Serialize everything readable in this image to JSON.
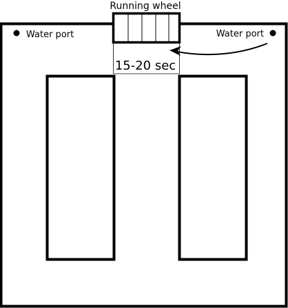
{
  "diagram": {
    "wheel_label": "Running wheel",
    "left_port_label": "Water port",
    "right_port_label": "Water port",
    "interval_label": "15-20 sec"
  },
  "colors": {
    "stroke": "#000000",
    "background": "#ffffff"
  }
}
